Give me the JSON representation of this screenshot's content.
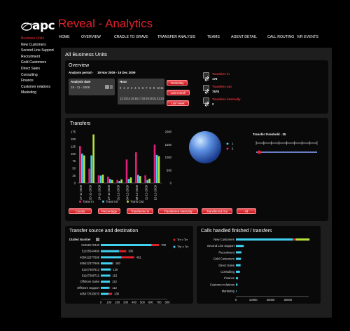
{
  "app": {
    "logo_text": "apc",
    "title": "Reveal - Analytics"
  },
  "sidebar": {
    "items": [
      {
        "label": "Business Units",
        "active": true
      },
      {
        "label": "New Customers"
      },
      {
        "label": "Second Line Support"
      },
      {
        "label": "Recruitment"
      },
      {
        "label": "Gold Customers"
      },
      {
        "label": "Direct Sales"
      },
      {
        "label": "Consulting"
      },
      {
        "label": "Finance"
      },
      {
        "label": "Customer relations"
      },
      {
        "label": "Marketing"
      }
    ]
  },
  "topnav": [
    "HOME",
    "OVERVIEW",
    "CRADLE TO GRAVE",
    "TRANSFER ANALYSIS",
    "TEAMS",
    "AGENT DETAIL",
    "CALL ROUTING",
    "IVR EVENTS"
  ],
  "main": {
    "title": "All Business Units"
  },
  "overview": {
    "title": "Overview",
    "analysis_period_label": "Analysis period -",
    "analysis_period_value": "19 Nov 2009  -  16 Dec 2009",
    "analysis_date_label": "Analysis date",
    "analysis_date_value": "19 - 11 - 2009",
    "hour_label": "Hour",
    "hours_row1": [
      "0",
      "1",
      "2",
      "3",
      "4",
      "5",
      "6",
      "7",
      "8",
      "9",
      "10",
      "11"
    ],
    "hours_row2": [
      "12",
      "13",
      "14",
      "15",
      "16",
      "17",
      "18",
      "19",
      "20",
      "21",
      "22",
      "23"
    ],
    "buttons": [
      "Yesterday",
      "Last month",
      "Last week"
    ],
    "stats": [
      {
        "label": "Transfers in",
        "value": "176",
        "icon": "transfer-in-icon"
      },
      {
        "label": "Transfers out",
        "value": "7578",
        "icon": "transfer-out-icon"
      },
      {
        "label": "Transfers internally",
        "value": "2",
        "icon": "transfer-internal-icon"
      }
    ]
  },
  "transfers": {
    "title": "Transfers",
    "threshold_label": "Transfer threshold - 35",
    "slider_value": 0.05,
    "pie_legend": [
      "1",
      "2"
    ],
    "legend": [
      "Trans in",
      "Trans Int",
      "Trans Out"
    ],
    "buttons": [
      "Counts",
      "Percentage",
      "Transferred in",
      "Transferred Internally",
      "Transferred Out",
      "All"
    ]
  },
  "chart_data": [
    {
      "type": "bar",
      "title": "Transfers",
      "categories": [
        "17-11-2009",
        "20-11-2009",
        "24-11-2009",
        "27-11-2009",
        "01-12-2009",
        "04-12-2009",
        "08-12-2009",
        "11-12-2009",
        "15-12-2009"
      ],
      "series": [
        {
          "name": "Trans in",
          "color": "#e0207a",
          "values": [
            1450,
            560,
            300,
            250,
            120,
            920,
            1200,
            300,
            1500
          ]
        },
        {
          "name": "Trans Int",
          "color": "#40d0f0",
          "values": [
            1150,
            1080,
            290,
            160,
            80,
            160,
            320,
            120,
            1100
          ]
        },
        {
          "name": "Trans Out",
          "color": "#b6e23a",
          "values": [
            1080,
            1900,
            330,
            120,
            140,
            220,
            270,
            170,
            1050
          ]
        }
      ],
      "left_ticks": [
        "0",
        "25",
        "50",
        "75",
        "100",
        "125",
        "150",
        "175"
      ],
      "right_ticks": [
        "0",
        "500",
        "1000",
        "1500",
        "2000"
      ],
      "ylim": [
        0,
        2000
      ]
    },
    {
      "type": "bar",
      "title": "Transfer source and destination",
      "legend": [
        "Trr > Trr",
        "Thr > Trr"
      ],
      "header": "Dialled Number",
      "categories": [
        "51558172340",
        "51155544466",
        "485422377668",
        "485422377669",
        "51107487612",
        "51107386712",
        "Offshore Sales",
        "Offshore Support",
        "485477633070"
      ],
      "series": [
        {
          "name": "Trr > Trr",
          "color": "#40d0f0",
          "values": [
            610,
            220,
            250,
            140,
            120,
            115,
            110,
            100,
            95
          ]
        },
        {
          "name": "Thr > Trr",
          "color": "#e0202a",
          "values": [
            90,
            86,
            151,
            10,
            0,
            0,
            0,
            12,
            41
          ]
        }
      ],
      "totals": [
        "700",
        "306",
        "401",
        "150",
        "120",
        "115",
        "110",
        "112",
        "136"
      ],
      "x_ticks": [
        "0",
        "100",
        "200",
        "300",
        "400",
        "500",
        "600",
        "700",
        "800"
      ],
      "xlim": [
        0,
        800
      ]
    },
    {
      "type": "bar",
      "title": "Calls handled finished / transfers",
      "categories": [
        "New Customers",
        "Second Line Support",
        "Recruitment",
        "Gold Customers",
        "Direct Sales",
        "Consulting",
        "Finance",
        "Customer relations",
        "Marketing"
      ],
      "values": [
        33000,
        4500,
        3200,
        2900,
        2700,
        2300,
        1200,
        900,
        300
      ],
      "stack_extras": [
        {
          "color": "#e0202a",
          "value": 1500
        },
        {
          "color": "#b6e23a",
          "value": 8000
        }
      ],
      "x_ticks": [
        "0",
        "10000",
        "20000",
        "30000"
      ],
      "xlim": [
        0,
        42000
      ]
    }
  ]
}
